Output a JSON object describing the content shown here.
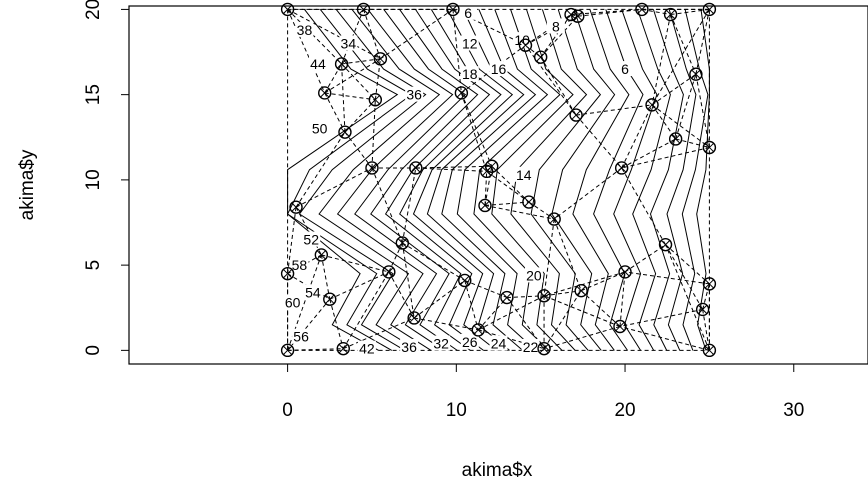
{
  "chart_data": {
    "type": "scatter",
    "title": "",
    "xlabel": "akima$x",
    "ylabel": "akima$y",
    "xlim": [
      -9.4,
      34.4
    ],
    "ylim": [
      -0.8,
      20.2
    ],
    "x_ticks": [
      0,
      10,
      20,
      30
    ],
    "y_ticks": [
      0,
      5,
      10,
      15,
      20
    ],
    "grid": false,
    "legend": "none",
    "box": true,
    "points": [
      [
        0.0,
        0.0
      ],
      [
        0.0,
        4.5
      ],
      [
        0.0,
        20.0
      ],
      [
        0.5,
        8.4
      ],
      [
        2.0,
        5.6
      ],
      [
        2.2,
        15.1
      ],
      [
        2.5,
        3.0
      ],
      [
        3.2,
        16.8
      ],
      [
        3.3,
        0.1
      ],
      [
        3.4,
        12.8
      ],
      [
        4.5,
        20.0
      ],
      [
        5.0,
        10.7
      ],
      [
        5.2,
        14.7
      ],
      [
        5.5,
        17.1
      ],
      [
        6.0,
        4.6
      ],
      [
        6.8,
        6.3
      ],
      [
        7.5,
        1.9
      ],
      [
        7.6,
        10.7
      ],
      [
        9.8,
        20.0
      ],
      [
        10.3,
        15.1
      ],
      [
        10.5,
        4.1
      ],
      [
        11.3,
        1.2
      ],
      [
        11.7,
        8.5
      ],
      [
        11.8,
        10.5
      ],
      [
        12.1,
        10.8
      ],
      [
        13.0,
        3.1
      ],
      [
        14.1,
        17.9
      ],
      [
        14.3,
        8.7
      ],
      [
        15.0,
        17.2
      ],
      [
        15.2,
        3.2
      ],
      [
        15.2,
        0.1
      ],
      [
        15.8,
        7.7
      ],
      [
        16.8,
        19.7
      ],
      [
        17.1,
        13.8
      ],
      [
        17.2,
        19.6
      ],
      [
        17.4,
        3.5
      ],
      [
        19.7,
        1.4
      ],
      [
        19.8,
        10.7
      ],
      [
        20.0,
        4.6
      ],
      [
        21.0,
        20.0
      ],
      [
        21.6,
        14.4
      ],
      [
        22.4,
        6.2
      ],
      [
        22.7,
        19.7
      ],
      [
        23.0,
        12.4
      ],
      [
        24.2,
        16.2
      ],
      [
        24.6,
        2.4
      ],
      [
        25.0,
        0.0
      ],
      [
        25.0,
        3.9
      ],
      [
        25.0,
        11.9
      ],
      [
        25.0,
        20.0
      ]
    ],
    "contour_labels": [
      {
        "text": "6",
        "x": 10.7,
        "y": 19.8
      },
      {
        "text": "12",
        "x": 10.8,
        "y": 18.0
      },
      {
        "text": "10",
        "x": 13.9,
        "y": 18.2
      },
      {
        "text": "8",
        "x": 15.9,
        "y": 19.0
      },
      {
        "text": "6",
        "x": 20.0,
        "y": 16.5
      },
      {
        "text": "18",
        "x": 10.8,
        "y": 16.2
      },
      {
        "text": "16",
        "x": 12.5,
        "y": 16.5
      },
      {
        "text": "38",
        "x": 1.0,
        "y": 18.8
      },
      {
        "text": "34",
        "x": 3.6,
        "y": 18.0
      },
      {
        "text": "44",
        "x": 1.8,
        "y": 16.8
      },
      {
        "text": "36",
        "x": 7.5,
        "y": 15.0
      },
      {
        "text": "50",
        "x": 1.9,
        "y": 13.0
      },
      {
        "text": "14",
        "x": 14.0,
        "y": 10.3
      },
      {
        "text": "20",
        "x": 14.6,
        "y": 4.4
      },
      {
        "text": "52",
        "x": 1.4,
        "y": 6.5
      },
      {
        "text": "58",
        "x": 0.7,
        "y": 5.0
      },
      {
        "text": "54",
        "x": 1.5,
        "y": 3.4
      },
      {
        "text": "60",
        "x": 0.3,
        "y": 2.8
      },
      {
        "text": "56",
        "x": 0.8,
        "y": 0.8
      },
      {
        "text": "42",
        "x": 4.7,
        "y": 0.1
      },
      {
        "text": "36",
        "x": 7.2,
        "y": 0.2
      },
      {
        "text": "32",
        "x": 9.1,
        "y": 0.4
      },
      {
        "text": "26",
        "x": 10.8,
        "y": 0.5
      },
      {
        "text": "24",
        "x": 12.5,
        "y": 0.4
      },
      {
        "text": "22",
        "x": 14.4,
        "y": 0.2
      }
    ]
  }
}
